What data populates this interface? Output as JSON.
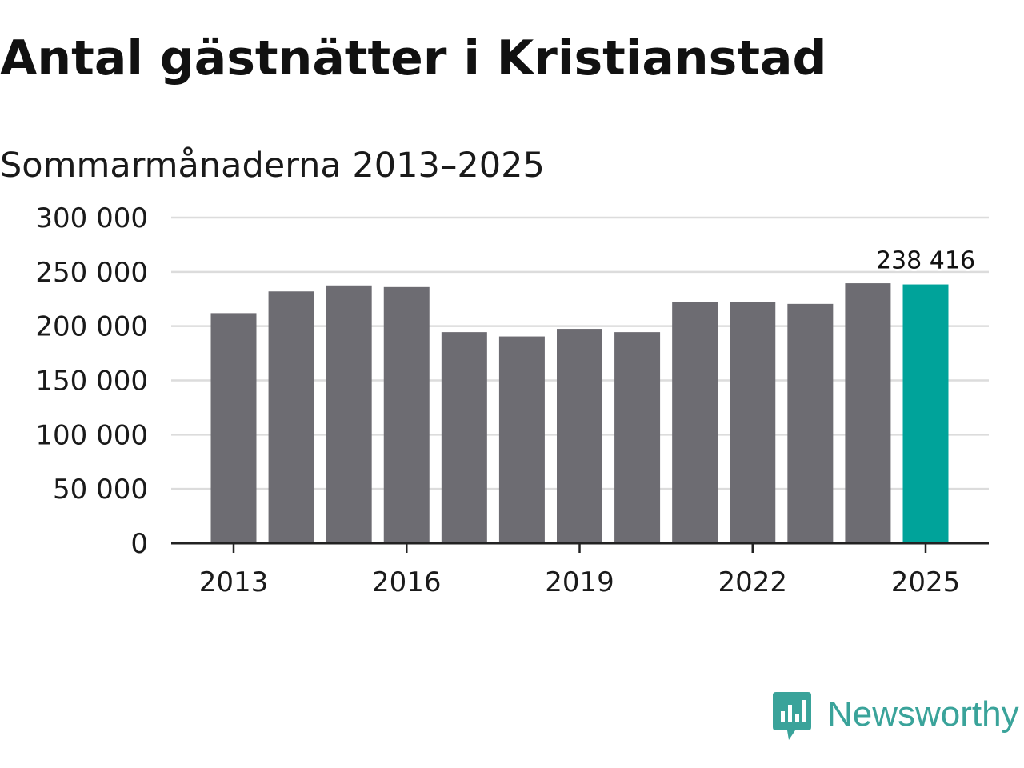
{
  "title": "Antal gästnätter i Kristianstad",
  "subtitle": "Sommarmånaderna 2013–2025",
  "brand": {
    "name": "Newsworthy",
    "color": "#3aa39a",
    "icon": "newsworthy-logo-icon"
  },
  "colors": {
    "bar": "#6d6c72",
    "highlight": "#00a39a",
    "grid": "#dcdcdc",
    "axis": "#222222",
    "text": "#1a1a1a"
  },
  "chart_data": {
    "type": "bar",
    "categories": [
      "2013",
      "2014",
      "2015",
      "2016",
      "2017",
      "2018",
      "2019",
      "2020",
      "2021",
      "2022",
      "2023",
      "2024",
      "2025"
    ],
    "values": [
      212000,
      232000,
      237500,
      236000,
      194500,
      190500,
      197500,
      194500,
      222500,
      222500,
      220500,
      239500,
      238416
    ],
    "highlight_index": 12,
    "highlight_label": "238 416",
    "ylim": [
      0,
      300000
    ],
    "yticks": [
      0,
      50000,
      100000,
      150000,
      200000,
      250000,
      300000
    ],
    "ytick_labels": [
      "0",
      "50 000",
      "100 000",
      "150 000",
      "200 000",
      "250 000",
      "300 000"
    ],
    "xtick_labels": [
      "2013",
      "2016",
      "2019",
      "2022",
      "2025"
    ],
    "xtick_indices": [
      0,
      3,
      6,
      9,
      12
    ],
    "xlabel": "",
    "ylabel": "",
    "grid": true,
    "legend": "none"
  }
}
